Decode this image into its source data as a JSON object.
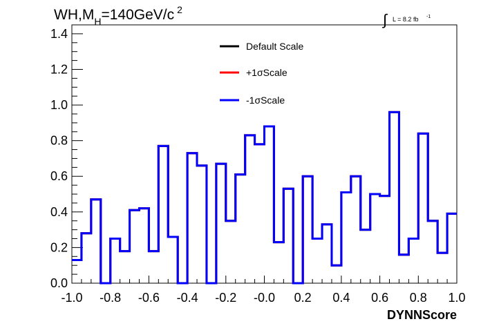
{
  "title": {
    "main": "WH,M",
    "sub": "H",
    "rest": "=140GeV/c",
    "sup": "2"
  },
  "lumi": {
    "integral": "∫",
    "text": "L = 8.2 fb",
    "sup": "-1"
  },
  "legend": [
    {
      "label": "Default Scale",
      "color": "#000000"
    },
    {
      "label": "+1σScale",
      "color": "#ff0000"
    },
    {
      "label": "-1σScale",
      "color": "#0000ff"
    }
  ],
  "chart_data": {
    "type": "line",
    "style": "step-histogram",
    "xlabel": "DYNNScore",
    "ylabel": "",
    "xlim": [
      -1.0,
      1.0
    ],
    "ylim": [
      0.0,
      1.45
    ],
    "x_ticks": [
      -1.0,
      -0.8,
      -0.6,
      -0.4,
      -0.2,
      0.0,
      0.2,
      0.4,
      0.6,
      0.8,
      1.0
    ],
    "x_tick_labels": [
      "-1.0",
      "-0.8",
      "-0.6",
      "-0.4",
      "-0.2",
      "-0.0",
      "0.2",
      "0.4",
      "0.6",
      "0.8",
      "1.0"
    ],
    "y_ticks": [
      0.0,
      0.2,
      0.4,
      0.6,
      0.8,
      1.0,
      1.2,
      1.4
    ],
    "y_tick_labels": [
      "0.0",
      "0.2",
      "0.4",
      "0.6",
      "0.8",
      "1.0",
      "1.2",
      "1.4"
    ],
    "bin_edges_range": [
      -1.0,
      1.0
    ],
    "n_bins": 40,
    "series": [
      {
        "name": "Default Scale",
        "color": "#000000",
        "values": [
          0.13,
          0.28,
          0.47,
          0.0,
          0.25,
          0.18,
          0.41,
          0.42,
          0.18,
          0.77,
          0.26,
          0.0,
          0.73,
          0.66,
          0.0,
          0.67,
          0.35,
          0.61,
          0.83,
          0.78,
          0.88,
          0.23,
          0.53,
          0.0,
          0.6,
          0.25,
          0.33,
          0.1,
          0.51,
          0.6,
          0.3,
          0.5,
          0.49,
          0.96,
          0.16,
          0.25,
          0.84,
          0.35,
          0.17,
          0.39
        ]
      },
      {
        "name": "+1σScale",
        "color": "#ff0000",
        "values": [
          0.13,
          0.28,
          0.47,
          0.0,
          0.25,
          0.18,
          0.41,
          0.42,
          0.18,
          0.77,
          0.26,
          0.0,
          0.73,
          0.66,
          0.0,
          0.67,
          0.35,
          0.61,
          0.83,
          0.78,
          0.88,
          0.23,
          0.53,
          0.0,
          0.6,
          0.25,
          0.33,
          0.1,
          0.51,
          0.6,
          0.3,
          0.5,
          0.49,
          0.96,
          0.16,
          0.25,
          0.84,
          0.35,
          0.17,
          0.39
        ]
      },
      {
        "name": "-1σScale",
        "color": "#0000ff",
        "values": [
          0.13,
          0.28,
          0.47,
          0.0,
          0.25,
          0.18,
          0.41,
          0.42,
          0.18,
          0.77,
          0.26,
          0.0,
          0.73,
          0.66,
          0.0,
          0.67,
          0.35,
          0.61,
          0.83,
          0.78,
          0.88,
          0.23,
          0.53,
          0.0,
          0.6,
          0.25,
          0.33,
          0.1,
          0.51,
          0.6,
          0.3,
          0.5,
          0.49,
          0.96,
          0.16,
          0.25,
          0.84,
          0.35,
          0.17,
          0.39
        ]
      }
    ],
    "legend_position": "top-center",
    "grid": false
  }
}
